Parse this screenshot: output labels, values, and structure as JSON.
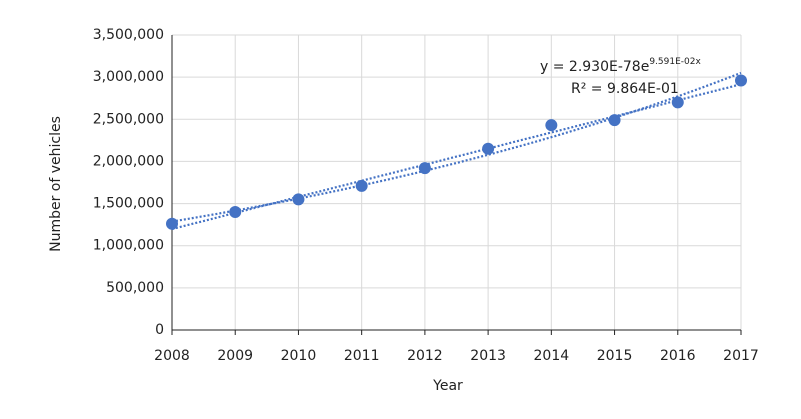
{
  "chart_data": {
    "type": "scatter",
    "x_label": "Year",
    "y_label": "Number of vehicles",
    "x": [
      2008,
      2009,
      2010,
      2011,
      2012,
      2013,
      2014,
      2015,
      2016,
      2017
    ],
    "series": [
      {
        "color": "#4472c4",
        "values": [
          1260000,
          1400000,
          1550000,
          1710000,
          1920000,
          2150000,
          2430000,
          2490000,
          2700000,
          2960000
        ]
      }
    ],
    "trendlines": [
      "linear",
      "exponential"
    ],
    "annotations": {
      "equation": "y = 2.930E-78e",
      "exponent": "9.591E-02x",
      "r_squared": "R² = 9.864E-01"
    },
    "xlim": [
      2008,
      2017
    ],
    "xticks": [
      2008,
      2009,
      2010,
      2011,
      2012,
      2013,
      2014,
      2015,
      2016,
      2017
    ],
    "ylim": [
      0,
      3500000
    ],
    "yticks": [
      0,
      {
        "value": 500000,
        "label": "500,000"
      },
      {
        "value": 1000000,
        "label": "1,000,000"
      },
      {
        "value": 1500000,
        "label": "1,500,000"
      },
      {
        "value": 2000000,
        "label": "2,000,000"
      },
      {
        "value": 2500000,
        "label": "2,500,000"
      },
      {
        "value": 3000000,
        "label": "3,000,000"
      },
      {
        "value": 3500000,
        "label": "3,500,000"
      }
    ],
    "grid": true
  }
}
